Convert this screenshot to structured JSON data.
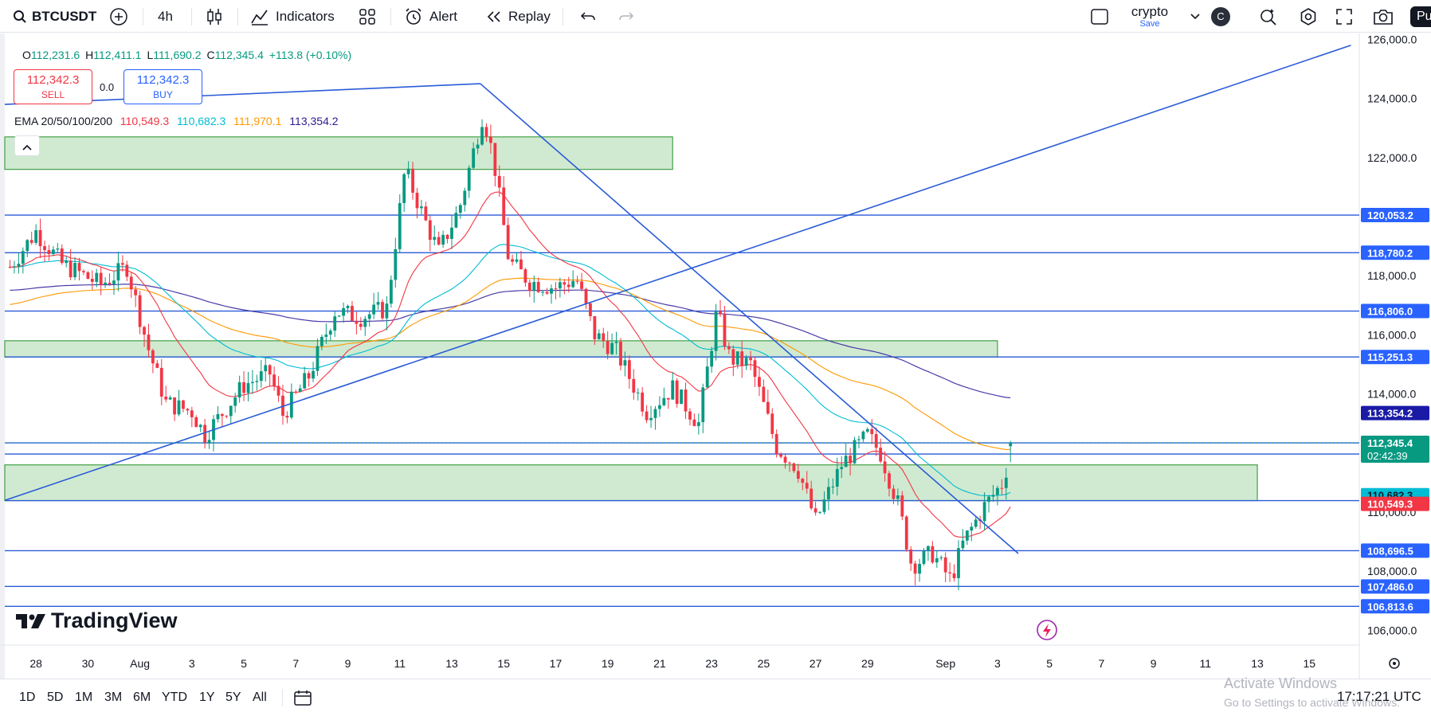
{
  "toolbar": {
    "symbol": "BTCUSDT",
    "interval": "4h",
    "indicators_label": "Indicators",
    "alert_label": "Alert",
    "replay_label": "Replay",
    "layout_name": "crypto",
    "layout_status": "Save",
    "avatar_letter": "C",
    "publish_label": "Pu"
  },
  "legend": {
    "open_label": "O",
    "open": "112,231.6",
    "high_label": "H",
    "high": "112,411.1",
    "low_label": "L",
    "low": "111,690.2",
    "close_label": "C",
    "close": "112,345.4",
    "change": "+113.8 (+0.10%)",
    "sell_price": "112,342.3",
    "sell_label": "SELL",
    "spread": "0.0",
    "buy_price": "112,342.3",
    "buy_label": "BUY",
    "ema_label": "EMA 20/50/100/200",
    "ema20": "110,549.3",
    "ema50": "110,682.3",
    "ema100": "111,970.1",
    "ema200": "113,354.2",
    "collapse_icon": "chevron-up-icon"
  },
  "brand": "TradingView",
  "bottom": {
    "ranges": [
      "1D",
      "5D",
      "1M",
      "3M",
      "6M",
      "YTD",
      "1Y",
      "5Y",
      "All"
    ],
    "clock": "17:17:21 UTC",
    "watermark_title": "Activate Windows",
    "watermark_sub": "Go to Settings to activate Windows."
  },
  "colors": {
    "up": "#089981",
    "down": "#f23645",
    "ema20": "#f23645",
    "ema50": "#00bcd4",
    "ema100": "#ff9800",
    "ema200": "#4a3aa8",
    "lines": "#2a5bd7",
    "zone": "#c8e6c9",
    "zone_border": "#43a047"
  },
  "chart_data": {
    "type": "candlestick",
    "symbol": "BTCUSDT",
    "interval": "4h",
    "y_axis": {
      "ylim": [
        105500,
        126200
      ],
      "ticks": [
        106000,
        108000,
        110000,
        112000,
        114000,
        116000,
        118000,
        120000,
        122000,
        124000,
        126000
      ],
      "tick_labels": [
        "106,000.0",
        "108,000.0",
        "110,000.0",
        "112,000.0",
        "114,000.0",
        "116,000.0",
        "118,000.0",
        "120,000.0",
        "122,000.0",
        "124,000.0",
        "126,000.0"
      ]
    },
    "x_axis": {
      "labels": [
        "28",
        "30",
        "Aug",
        "3",
        "5",
        "7",
        "9",
        "11",
        "13",
        "15",
        "17",
        "19",
        "21",
        "23",
        "25",
        "27",
        "29",
        "Sep",
        "3",
        "5",
        "7",
        "9",
        "11",
        "13",
        "15"
      ],
      "label_days": [
        -4,
        -2,
        0,
        2,
        4,
        6,
        8,
        10,
        12,
        14,
        16,
        18,
        20,
        22,
        24,
        26,
        28,
        31,
        33,
        35,
        37,
        39,
        41,
        43,
        45
      ],
      "day_numbering": "days from Aug 1",
      "range_days": [
        -5.2,
        46.8
      ]
    },
    "price_path": [
      {
        "day": -5,
        "price": 118300
      },
      {
        "day": -4,
        "price": 119500
      },
      {
        "day": -3,
        "price": 118400
      },
      {
        "day": -1.5,
        "price": 117700
      },
      {
        "day": -0.5,
        "price": 118300
      },
      {
        "day": 0.3,
        "price": 115600
      },
      {
        "day": 1,
        "price": 113700
      },
      {
        "day": 2,
        "price": 113400
      },
      {
        "day": 2.5,
        "price": 112600
      },
      {
        "day": 4,
        "price": 114300
      },
      {
        "day": 5,
        "price": 114700
      },
      {
        "day": 5.5,
        "price": 113300
      },
      {
        "day": 6.5,
        "price": 114600
      },
      {
        "day": 7.5,
        "price": 116800
      },
      {
        "day": 8.5,
        "price": 116600
      },
      {
        "day": 9.5,
        "price": 116900
      },
      {
        "day": 10.2,
        "price": 121600
      },
      {
        "day": 11,
        "price": 119800
      },
      {
        "day": 11.5,
        "price": 118800
      },
      {
        "day": 12.3,
        "price": 120300
      },
      {
        "day": 13.2,
        "price": 123500
      },
      {
        "day": 13.6,
        "price": 122000
      },
      {
        "day": 14.2,
        "price": 118500
      },
      {
        "day": 15,
        "price": 117800
      },
      {
        "day": 16,
        "price": 117600
      },
      {
        "day": 16.8,
        "price": 117900
      },
      {
        "day": 17.5,
        "price": 116000
      },
      {
        "day": 18.3,
        "price": 115500
      },
      {
        "day": 19.5,
        "price": 113400
      },
      {
        "day": 20.5,
        "price": 114200
      },
      {
        "day": 21.5,
        "price": 113000
      },
      {
        "day": 22.2,
        "price": 116800
      },
      {
        "day": 22.7,
        "price": 115200
      },
      {
        "day": 23.5,
        "price": 115000
      },
      {
        "day": 24.5,
        "price": 112200
      },
      {
        "day": 25.3,
        "price": 111500
      },
      {
        "day": 26,
        "price": 109700
      },
      {
        "day": 27,
        "price": 111600
      },
      {
        "day": 28,
        "price": 112600
      },
      {
        "day": 28.5,
        "price": 112000
      },
      {
        "day": 29.2,
        "price": 110200
      },
      {
        "day": 29.7,
        "price": 108200
      },
      {
        "day": 30.5,
        "price": 108600
      },
      {
        "day": 31.2,
        "price": 107700
      },
      {
        "day": 31.7,
        "price": 109000
      },
      {
        "day": 32.5,
        "price": 110200
      },
      {
        "day": 33.2,
        "price": 111000
      },
      {
        "day": 33.6,
        "price": 112345
      }
    ],
    "price_levels": [
      120053.2,
      118780.2,
      116806.0,
      115251.3,
      112345.4,
      111966.4,
      110390.1,
      108696.5,
      107486.0,
      106813.6
    ],
    "price_label_values": [
      "120,053.2",
      "118,780.2",
      "116,806.0",
      "115,251.3",
      "112,345.4",
      "111,966.4",
      "110,390.1",
      "108,696.5",
      "107,486.0",
      "106,813.6"
    ],
    "countdown": "02:42:39",
    "ema_last": {
      "ema20": 110549.3,
      "ema50": 110682.3,
      "ema100": 111970.1,
      "ema200": 113354.2
    },
    "ema_last_labels": [
      "110,549.3",
      "110,682.3",
      "111,970.1",
      "113,354.2"
    ],
    "zones": [
      {
        "from_day": -5.2,
        "to_day": 20.5,
        "low": 121600,
        "high": 122700
      },
      {
        "from_day": -5.2,
        "to_day": 33.0,
        "low": 115251.3,
        "high": 115800
      },
      {
        "from_day": -5.2,
        "to_day": 43.0,
        "low": 110390.1,
        "high": 111600
      }
    ],
    "trendlines": [
      {
        "from": {
          "day": -5.2,
          "price": 110400
        },
        "to": {
          "day": 46.6,
          "price": 125800
        }
      },
      {
        "from": {
          "day": -5.2,
          "price": 123800
        },
        "to": {
          "day": 13.1,
          "price": 124500
        }
      },
      {
        "from": {
          "day": 13.1,
          "price": 124500
        },
        "to": {
          "day": 33.8,
          "price": 108600
        }
      }
    ]
  }
}
